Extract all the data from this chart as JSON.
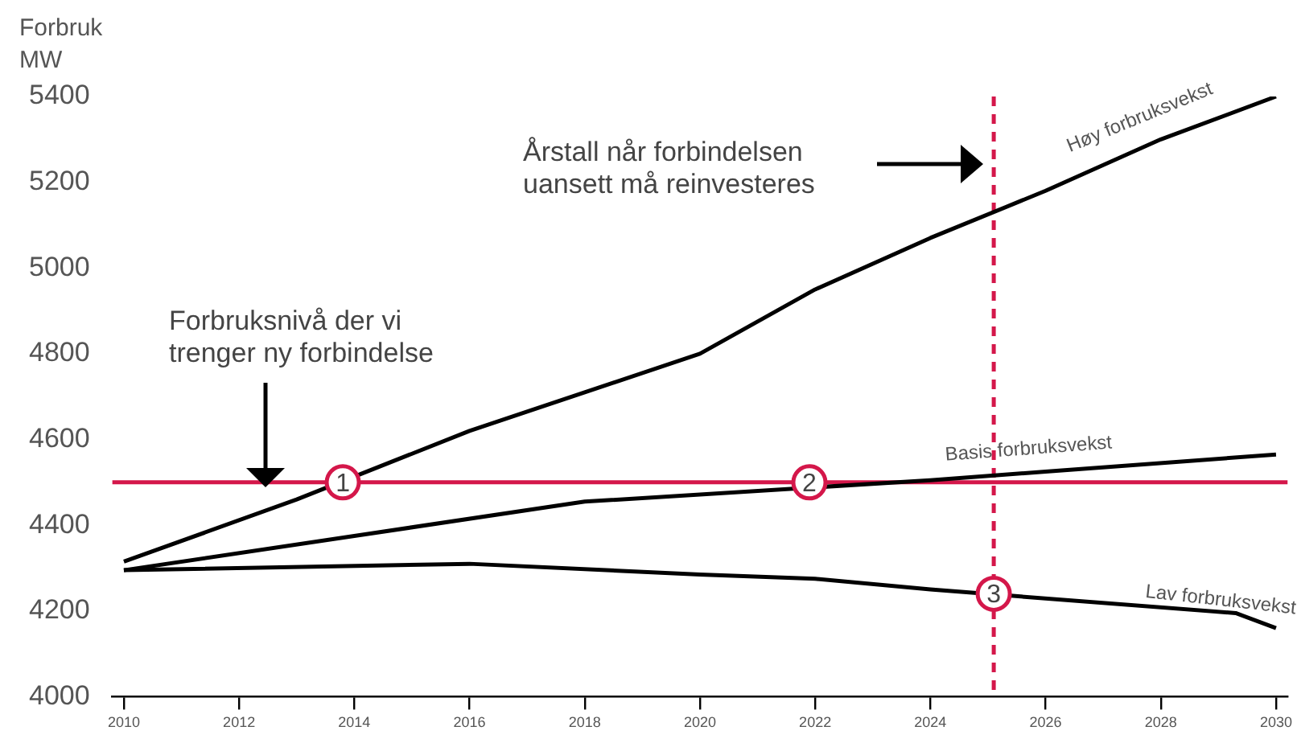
{
  "chart_data": {
    "type": "line",
    "ylabel": "Forbruk\nMW",
    "series": [
      {
        "name": "Høy forbruksvekst",
        "color": "#000000",
        "x": [
          2010,
          2013,
          2016,
          2018,
          2020,
          2022,
          2024,
          2026,
          2028,
          2030
        ],
        "values": [
          4315,
          4460,
          4620,
          4710,
          4800,
          4950,
          5070,
          5180,
          5300,
          5400
        ]
      },
      {
        "name": "Basis forbruksvekst",
        "color": "#000000",
        "x": [
          2010,
          2014,
          2018,
          2024,
          2026,
          2030
        ],
        "values": [
          4295,
          4375,
          4455,
          4505,
          4525,
          4565
        ]
      },
      {
        "name": "Lav forbruksvekst",
        "color": "#000000",
        "x": [
          2010,
          2016,
          2020,
          2022,
          2024,
          2029.3,
          2030
        ],
        "values": [
          4295,
          4310,
          4285,
          4275,
          4250,
          4195,
          4160
        ]
      }
    ],
    "xlim": [
      2009.8,
      2030.2
    ],
    "xticks": [
      2010,
      2012,
      2014,
      2016,
      2018,
      2020,
      2022,
      2024,
      2026,
      2028,
      2030
    ],
    "ylim": [
      4000,
      5400
    ],
    "yticks": [
      4000,
      4200,
      4400,
      4600,
      4800,
      5000,
      5200,
      5400
    ],
    "grid": false,
    "legend": false,
    "marker": "none",
    "line_style": "solid",
    "ref_lines": [
      {
        "axis": "y",
        "value": 4500,
        "color": "#d4174a",
        "line_style": "solid"
      },
      {
        "axis": "x",
        "value": 2025.1,
        "color": "#d4174a",
        "line_style": "dashed"
      }
    ],
    "annotations": [
      "Forbruksnivå der vi\ntrenger ny forbindelse",
      "Årstall når forbindelsen\nuansett må reinvesteres",
      {
        "text": "1",
        "x": 2013.8,
        "y": 4500
      },
      {
        "text": "2",
        "x": 2021.9,
        "y": 4500
      },
      {
        "text": "3",
        "x": 2025.1,
        "y": 4240
      }
    ]
  }
}
